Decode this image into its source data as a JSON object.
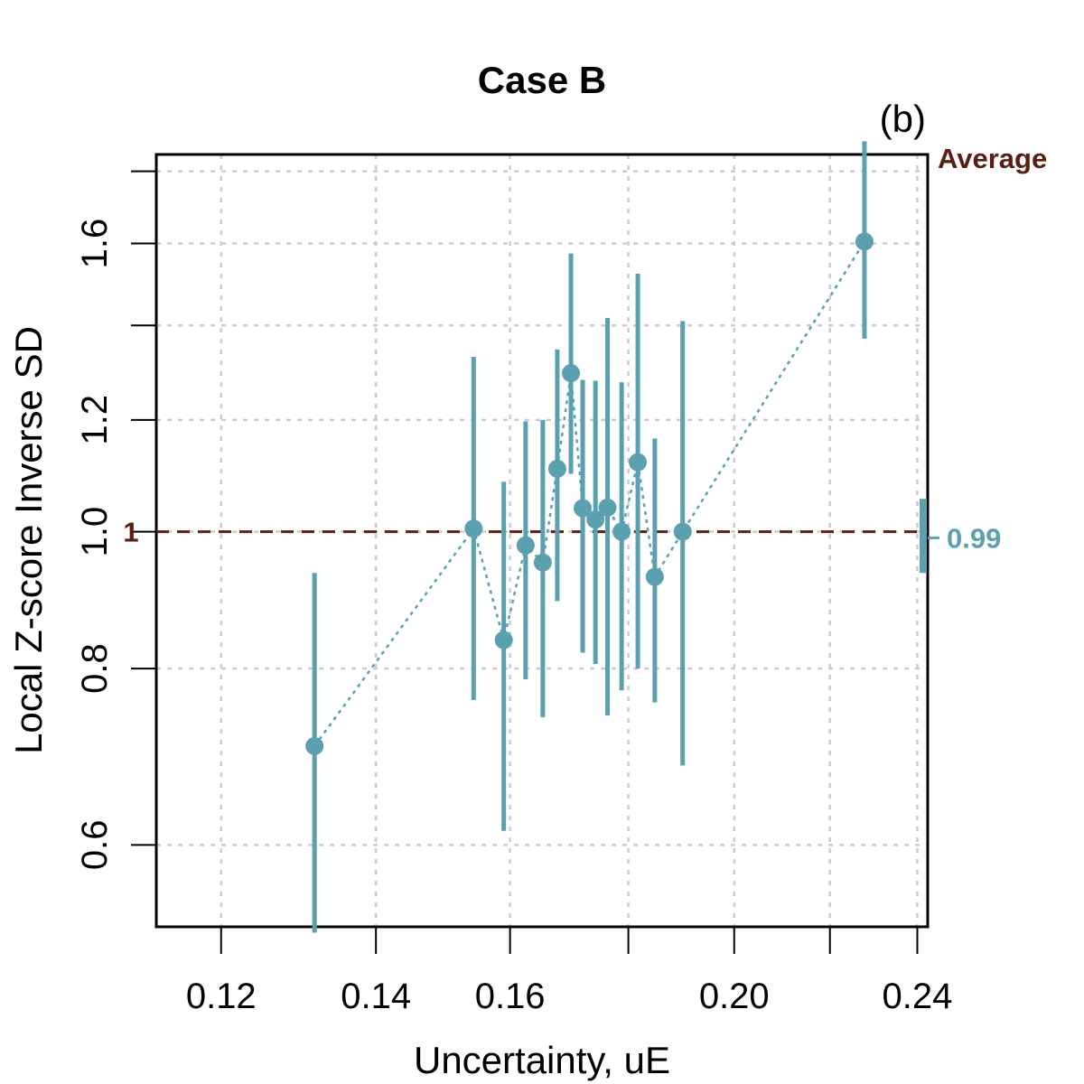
{
  "chart_data": {
    "type": "scatter",
    "title": "Case B",
    "panel_label": "(b)",
    "xlabel": "Uncertainty, uE",
    "ylabel": "Local Z-score Inverse SD",
    "x_scale": "log",
    "y_scale": "log",
    "xlim": [
      0.1125,
      0.2425
    ],
    "ylim": [
      0.525,
      1.85
    ],
    "x_ticks": [
      0.12,
      0.14,
      0.16,
      0.2,
      0.24
    ],
    "x_tick_labels": [
      "0.12",
      "0.14",
      "0.16",
      "0.20",
      "0.24"
    ],
    "x_minor_ticks": [
      0.18,
      0.22
    ],
    "y_ticks": [
      0.6,
      0.8,
      1.0,
      1.2,
      1.6
    ],
    "y_tick_labels": [
      "0.6",
      "0.8",
      "1.0",
      "1.2",
      "1.6"
    ],
    "y_minor_ticks": [
      1.4,
      1.8
    ],
    "grid": true,
    "reference_line": {
      "value": 1,
      "label": "1",
      "color": "#5a1e12",
      "style": "dashed"
    },
    "average": {
      "label": "Average",
      "value": 0.99,
      "value_label": "0.99",
      "low": 0.935,
      "high": 1.055,
      "color": "#5aa0af"
    },
    "series": [
      {
        "name": "Local Z-score Inverse SD",
        "color": "#5aa0af",
        "points": [
          {
            "x": 0.1317,
            "y": 0.705,
            "low": 0.52,
            "high": 0.935
          },
          {
            "x": 0.1543,
            "y": 1.005,
            "low": 0.76,
            "high": 1.33
          },
          {
            "x": 0.159,
            "y": 0.838,
            "low": 0.614,
            "high": 1.085
          },
          {
            "x": 0.1625,
            "y": 0.978,
            "low": 0.786,
            "high": 1.197
          },
          {
            "x": 0.1653,
            "y": 0.951,
            "low": 0.739,
            "high": 1.2
          },
          {
            "x": 0.1677,
            "y": 1.108,
            "low": 0.893,
            "high": 1.346
          },
          {
            "x": 0.17,
            "y": 1.295,
            "low": 1.099,
            "high": 1.574
          },
          {
            "x": 0.172,
            "y": 1.039,
            "low": 0.821,
            "high": 1.281
          },
          {
            "x": 0.1742,
            "y": 1.02,
            "low": 0.806,
            "high": 1.279
          },
          {
            "x": 0.1763,
            "y": 1.04,
            "low": 0.741,
            "high": 1.417
          },
          {
            "x": 0.1788,
            "y": 1.0,
            "low": 0.772,
            "high": 1.276
          },
          {
            "x": 0.1817,
            "y": 1.12,
            "low": 0.8,
            "high": 1.523
          },
          {
            "x": 0.1848,
            "y": 0.929,
            "low": 0.757,
            "high": 1.164
          },
          {
            "x": 0.19,
            "y": 1.0,
            "low": 0.683,
            "high": 1.41
          },
          {
            "x": 0.2277,
            "y": 1.605,
            "low": 1.37,
            "high": 1.89
          }
        ]
      }
    ]
  }
}
